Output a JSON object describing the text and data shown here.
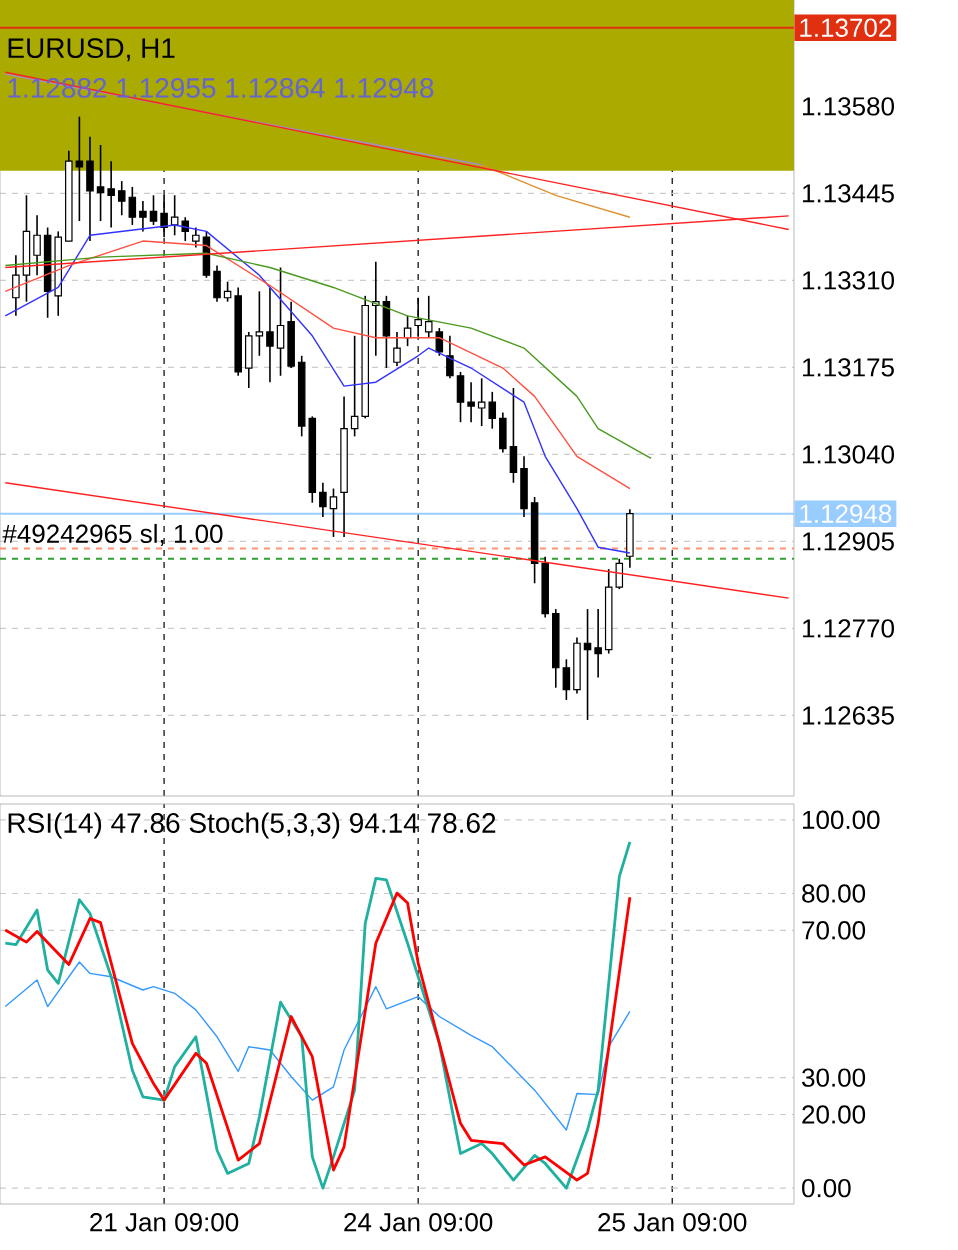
{
  "chart_data": [
    {
      "type": "candlestick",
      "title": "EURUSD, H1",
      "subtitle": "1.12882 1.12955 1.12864 1.12948",
      "categories": [
        null,
        null,
        null,
        null,
        null,
        null,
        null,
        null,
        null,
        null,
        null,
        null,
        null,
        null,
        null,
        null,
        null,
        null,
        null,
        null,
        null,
        null,
        null,
        null,
        null,
        null,
        null,
        null,
        null,
        null,
        null,
        null,
        null,
        null,
        null,
        null,
        null,
        null,
        null,
        null,
        null,
        null,
        null,
        null,
        null,
        null,
        null,
        null,
        null,
        null,
        null,
        null,
        null,
        null,
        null,
        null,
        null,
        null,
        null,
        null,
        null,
        null,
        null,
        null,
        null,
        null,
        null,
        null,
        null,
        null,
        null,
        null,
        null,
        null,
        null
      ],
      "ohlc": [
        null,
        [
          1.13283,
          1.13349,
          1.13255,
          1.13318
        ],
        [
          1.13318,
          1.13442,
          1.13277,
          1.13386
        ],
        [
          1.13349,
          1.13411,
          1.13318,
          1.1338
        ],
        [
          1.1338,
          1.13392,
          1.13252,
          1.13293
        ],
        [
          1.13286,
          1.13386,
          1.13255,
          1.13377
        ],
        [
          1.13371,
          1.13511,
          1.13371,
          1.13495
        ],
        [
          1.13495,
          1.13564,
          1.13402,
          1.13486
        ],
        [
          1.13495,
          1.13533,
          1.13371,
          1.13449
        ],
        [
          1.13455,
          1.1352,
          1.13402,
          1.13446
        ],
        [
          1.13452,
          1.13495,
          1.13392,
          1.13442
        ],
        [
          1.13449,
          1.13464,
          1.13411,
          1.13433
        ],
        [
          1.13439,
          1.13455,
          1.13396,
          1.13408
        ],
        [
          1.13417,
          1.13433,
          1.13386,
          1.13408
        ],
        [
          1.13417,
          1.13442,
          1.13396,
          1.13402
        ],
        [
          1.13414,
          1.13442,
          1.13377,
          1.13392
        ],
        [
          1.13396,
          1.13442,
          1.1338,
          1.13408
        ],
        [
          1.13402,
          1.13408,
          1.13371,
          1.13386
        ],
        [
          1.13371,
          1.13392,
          1.13361,
          1.1338
        ],
        [
          1.13377,
          1.13386,
          1.13314,
          1.13318
        ],
        [
          1.13324,
          1.13333,
          1.13277,
          1.13283
        ],
        [
          1.13283,
          1.13308,
          1.13277,
          1.13293
        ],
        [
          1.13286,
          1.13299,
          1.13162,
          1.13168
        ],
        [
          1.13174,
          1.1323,
          1.13143,
          1.13224
        ],
        [
          1.13224,
          1.13293,
          1.13193,
          1.1323
        ],
        [
          1.1323,
          1.13299,
          1.13152,
          1.13208
        ],
        [
          1.13205,
          1.1333,
          1.13162,
          1.1324
        ],
        [
          1.13246,
          1.13277,
          1.13174,
          1.13177
        ],
        [
          1.13183,
          1.13193,
          1.13068,
          1.13084
        ],
        [
          1.13096,
          1.13099,
          1.12965,
          1.12981
        ],
        [
          1.12981,
          1.12996,
          1.12943,
          1.12959
        ],
        [
          1.12956,
          1.12987,
          1.12912,
          1.12974
        ],
        [
          1.12981,
          1.1313,
          1.12912,
          1.1308
        ],
        [
          1.1308,
          1.13224,
          1.13068,
          1.13099
        ],
        [
          1.13099,
          1.13286,
          1.13096,
          1.13271
        ],
        [
          1.13271,
          1.13339,
          1.13193,
          1.13277
        ],
        [
          1.13277,
          1.13286,
          1.13174,
          1.13224
        ],
        [
          1.13183,
          1.1323,
          1.13177,
          1.13205
        ],
        [
          1.13221,
          1.13255,
          1.13208,
          1.13236
        ],
        [
          1.1324,
          1.13283,
          1.13224,
          1.13249
        ],
        [
          1.1323,
          1.13286,
          1.13221,
          1.13246
        ],
        [
          1.1323,
          1.13236,
          1.13193,
          1.13199
        ],
        [
          1.13193,
          1.13224,
          1.13158,
          1.13162
        ],
        [
          1.13162,
          1.13168,
          1.1309,
          1.13121
        ],
        [
          1.13121,
          1.13152,
          1.1309,
          1.13115
        ],
        [
          1.13112,
          1.13158,
          1.13084,
          1.13121
        ],
        [
          1.13121,
          1.13137,
          1.1308,
          1.13096
        ],
        [
          1.13096,
          1.13105,
          1.13043,
          1.13049
        ],
        [
          1.13052,
          1.13143,
          1.12996,
          1.13012
        ],
        [
          1.13018,
          1.13037,
          1.12943,
          1.12956
        ],
        [
          1.12965,
          1.12974,
          1.1284,
          1.12871
        ],
        [
          1.12871,
          1.12881,
          1.12787,
          1.12793
        ],
        [
          1.12793,
          1.128,
          1.12678,
          1.12709
        ],
        [
          1.12709,
          1.12722,
          1.12659,
          1.12675
        ],
        [
          1.12675,
          1.12756,
          1.12669,
          1.12747
        ],
        [
          1.12747,
          1.128,
          1.12628,
          1.12737
        ],
        [
          1.1274,
          1.128,
          1.12694,
          1.12731
        ],
        [
          1.12737,
          1.12862,
          1.12731,
          1.12834
        ],
        [
          1.12834,
          1.12878,
          1.12831,
          1.12871
        ],
        [
          1.12882,
          1.12955,
          1.12864,
          1.12948
        ],
        null,
        null,
        null,
        null,
        null,
        null,
        null,
        null,
        null,
        null,
        null,
        null,
        null,
        null,
        null
      ],
      "series": [
        {
          "type": "line",
          "color": "#3333ff",
          "values": [
            1.13255,
            null,
            null,
            null,
            null,
            1.13299,
            null,
            null,
            1.1338,
            null,
            null,
            null,
            null,
            null,
            null,
            null,
            1.13396,
            null,
            null,
            1.13386,
            null,
            null,
            null,
            null,
            1.13318,
            null,
            null,
            null,
            null,
            1.13224,
            null,
            null,
            1.13146,
            null,
            null,
            1.13152,
            null,
            null,
            null,
            1.13193,
            1.13205,
            null,
            null,
            null,
            1.13174,
            null,
            null,
            null,
            null,
            1.13121,
            null,
            1.13037,
            null,
            null,
            1.12956,
            null,
            1.12896,
            null,
            null,
            1.12887,
            null,
            null,
            null,
            null,
            null,
            null,
            null,
            null,
            null,
            null,
            null,
            null,
            null,
            null,
            null
          ]
        },
        {
          "type": "line",
          "color": "#ff5040",
          "values": [
            1.13293,
            null,
            null,
            null,
            null,
            null,
            1.13333,
            null,
            null,
            null,
            null,
            null,
            null,
            1.13371,
            null,
            null,
            null,
            null,
            null,
            1.13364,
            null,
            null,
            null,
            null,
            null,
            1.13302,
            null,
            null,
            null,
            null,
            null,
            1.13236,
            null,
            null,
            null,
            1.13221,
            null,
            null,
            null,
            null,
            null,
            1.13221,
            null,
            null,
            null,
            null,
            null,
            1.13174,
            null,
            null,
            1.1313,
            null,
            null,
            null,
            1.13037,
            null,
            null,
            null,
            null,
            1.12987,
            null,
            null,
            null,
            null,
            null,
            null,
            null,
            null,
            null,
            null,
            null,
            null,
            null,
            null,
            null
          ]
        },
        {
          "type": "line",
          "color": "#4a9a20",
          "values": [
            1.13333,
            null,
            null,
            null,
            null,
            null,
            null,
            null,
            null,
            1.13346,
            null,
            null,
            null,
            null,
            null,
            null,
            null,
            null,
            null,
            1.13352,
            null,
            null,
            null,
            null,
            null,
            1.1333,
            null,
            null,
            null,
            null,
            null,
            1.13299,
            null,
            null,
            null,
            null,
            null,
            null,
            1.13255,
            null,
            null,
            null,
            null,
            null,
            1.13236,
            null,
            null,
            null,
            null,
            1.13205,
            null,
            null,
            null,
            null,
            1.1313,
            null,
            1.1308,
            null,
            null,
            null,
            null,
            1.13034,
            null,
            null,
            null,
            null,
            null,
            null,
            null,
            null,
            null,
            null,
            null,
            null,
            null
          ]
        },
        {
          "type": "line",
          "color": "#a090d0",
          "values": [
            1.1363,
            null,
            null,
            null,
            null,
            null,
            null,
            null,
            null,
            null,
            null,
            null,
            null,
            null,
            null,
            1.13583,
            null,
            null,
            null,
            null,
            null,
            null,
            null,
            null,
            null,
            null,
            null,
            null,
            null,
            null,
            1.13536,
            null,
            null,
            null,
            null,
            null,
            null,
            null,
            null,
            null,
            null,
            null,
            null,
            null,
            null,
            1.13489,
            null,
            null,
            null,
            null,
            null,
            null,
            null,
            null,
            null,
            null,
            null,
            null,
            null,
            null,
            null,
            null,
            null,
            null,
            null,
            null,
            null,
            null,
            null,
            null,
            null,
            null,
            null,
            null,
            null
          ]
        },
        {
          "type": "line",
          "color": "#e09030",
          "values": [
            null,
            null,
            null,
            null,
            null,
            null,
            null,
            null,
            null,
            null,
            null,
            null,
            null,
            null,
            null,
            null,
            null,
            null,
            null,
            null,
            null,
            null,
            null,
            null,
            null,
            null,
            null,
            null,
            null,
            null,
            null,
            null,
            null,
            null,
            null,
            null,
            null,
            null,
            null,
            null,
            null,
            null,
            null,
            null,
            null,
            1.13489,
            null,
            null,
            null,
            null,
            null,
            null,
            1.13442,
            null,
            null,
            null,
            null,
            null,
            null,
            1.13408,
            null,
            null,
            null,
            null,
            null,
            null,
            null,
            null,
            null,
            null,
            null,
            null,
            null,
            null,
            null
          ]
        },
        {
          "type": "line",
          "color": "#ff2020",
          "values": [
            1.13633,
            null,
            null,
            null,
            null,
            null,
            null,
            null,
            null,
            null,
            null,
            null,
            null,
            null,
            null,
            null,
            null,
            null,
            null,
            null,
            null,
            null,
            null,
            null,
            null,
            null,
            null,
            null,
            null,
            null,
            null,
            null,
            null,
            null,
            null,
            null,
            null,
            null,
            null,
            null,
            null,
            null,
            null,
            null,
            null,
            null,
            null,
            null,
            null,
            null,
            null,
            null,
            null,
            null,
            null,
            null,
            null,
            null,
            null,
            null,
            null,
            null,
            null,
            null,
            null,
            null,
            null,
            null,
            null,
            null,
            null,
            null,
            null,
            null,
            1.13389
          ]
        },
        {
          "type": "line",
          "color": "#ff2020",
          "values": [
            1.1333,
            null,
            null,
            null,
            null,
            null,
            null,
            null,
            null,
            null,
            null,
            null,
            null,
            null,
            null,
            null,
            null,
            null,
            null,
            null,
            null,
            null,
            null,
            null,
            null,
            null,
            null,
            null,
            null,
            null,
            null,
            null,
            null,
            null,
            null,
            null,
            null,
            null,
            null,
            null,
            null,
            null,
            null,
            null,
            null,
            null,
            null,
            null,
            null,
            null,
            null,
            null,
            null,
            null,
            null,
            null,
            null,
            null,
            null,
            null,
            null,
            null,
            null,
            null,
            null,
            null,
            null,
            null,
            null,
            null,
            null,
            null,
            null,
            null,
            1.1341
          ]
        },
        {
          "type": "line",
          "color": "#ff2020",
          "values": [
            1.12996,
            null,
            null,
            null,
            null,
            null,
            null,
            null,
            null,
            null,
            null,
            null,
            null,
            null,
            null,
            null,
            null,
            null,
            null,
            null,
            null,
            null,
            null,
            null,
            null,
            null,
            null,
            null,
            null,
            null,
            null,
            null,
            null,
            null,
            null,
            null,
            null,
            null,
            null,
            null,
            null,
            null,
            null,
            null,
            null,
            null,
            null,
            null,
            null,
            null,
            null,
            null,
            null,
            null,
            null,
            null,
            null,
            null,
            null,
            null,
            null,
            null,
            null,
            null,
            null,
            null,
            null,
            null,
            null,
            null,
            null,
            null,
            null,
            null,
            1.12817
          ]
        }
      ],
      "bands": [
        {
          "axis": "y",
          "from": 1.1348,
          "to": 1.13745,
          "color": "#aaaa00"
        }
      ],
      "ref_lines": [
        {
          "axis": "y",
          "value": 1.13702,
          "label": "1.13702",
          "color": "#e03010"
        },
        {
          "axis": "y",
          "value": 1.12948,
          "label": "1.12948",
          "color": "#99ccff"
        },
        {
          "axis": "y",
          "value": 1.12894,
          "color": "#ff9070",
          "line_style": "dashed"
        },
        {
          "axis": "y",
          "value": 1.12878,
          "color": "#30a030",
          "line_style": "dashed"
        }
      ],
      "annotations": [
        {
          "text": "#49242965 sl, 1.00",
          "y": 1.12894
        }
      ],
      "ylim": [
        1.1251,
        1.13745
      ],
      "yticks": [
        {
          "value": 1.1358,
          "label": "1.13580"
        },
        1.13445,
        {
          "value": 1.1331,
          "label": "1.13310"
        },
        1.13175,
        {
          "value": 1.1304,
          "label": "1.13040"
        },
        1.12905,
        {
          "value": 1.1277,
          "label": "1.12770"
        },
        1.12635
      ],
      "grid": true,
      "tick_labels": "y"
    },
    {
      "type": "line",
      "title": "RSI(14) 47.86 Stoch(5,3,3) 94.14 78.62",
      "categories": [
        null,
        null,
        null,
        null,
        null,
        null,
        null,
        null,
        null,
        null,
        null,
        null,
        null,
        null,
        null,
        "21 Jan 09:00",
        null,
        null,
        null,
        null,
        null,
        null,
        null,
        null,
        null,
        null,
        null,
        null,
        null,
        null,
        null,
        null,
        null,
        null,
        null,
        null,
        null,
        null,
        null,
        "24 Jan 09:00",
        null,
        null,
        null,
        null,
        null,
        null,
        null,
        null,
        null,
        null,
        null,
        null,
        null,
        null,
        null,
        null,
        null,
        null,
        null,
        null,
        null,
        null,
        null,
        "25 Jan 09:00",
        null,
        null,
        null,
        null,
        null,
        null,
        null,
        null,
        null,
        null,
        null
      ],
      "series": [
        {
          "color": "#3399ff",
          "values": [
            49.3,
            null,
            null,
            56.5,
            49.3,
            null,
            null,
            61.4,
            58.3,
            null,
            57.4,
            null,
            null,
            53.8,
            54.7,
            null,
            52.9,
            null,
            48.4,
            null,
            41.1,
            null,
            31.7,
            38.4,
            null,
            37.5,
            null,
            30.3,
            null,
            23.9,
            null,
            27.5,
            37.5,
            null,
            null,
            54.7,
            48.7,
            null,
            null,
            52.0,
            null,
            46.6,
            null,
            null,
            41.5,
            null,
            38.4,
            null,
            null,
            null,
            26.6,
            null,
            null,
            15.8,
            25.7,
            null,
            25.4,
            38.4,
            null,
            48,
            null,
            null,
            null,
            null,
            null,
            null,
            null,
            null,
            null,
            null,
            null,
            null,
            null,
            null,
            null
          ]
        },
        {
          "color": "#20b0a0",
          "values": [
            66.5,
            66.1,
            null,
            75.5,
            59.2,
            55.6,
            null,
            78.3,
            74.6,
            null,
            57.4,
            null,
            32.0,
            24.8,
            null,
            23.9,
            33.0,
            null,
            41.1,
            null,
            10.3,
            4.0,
            null,
            6.7,
            19.4,
            null,
            50.5,
            null,
            41.1,
            8.5,
            0,
            8.5,
            null,
            26.6,
            71.9,
            84.1,
            83.7,
            null,
            66.5,
            null,
            null,
            39.3,
            null,
            9.4,
            null,
            12.1,
            9.4,
            null,
            2.2,
            null,
            8.9,
            6.7,
            null,
            0,
            null,
            15.8,
            26.6,
            null,
            84.6,
            94,
            null,
            null,
            null,
            null,
            null,
            null,
            null,
            null,
            null,
            null,
            null,
            null,
            null,
            null,
            null
          ]
        },
        {
          "color": "#ff0000",
          "values": [
            70.1,
            null,
            66.8,
            69.7,
            null,
            null,
            60.7,
            null,
            73.2,
            72.1,
            null,
            null,
            39.3,
            null,
            28.4,
            23.9,
            null,
            null,
            36.6,
            33.9,
            null,
            null,
            7.6,
            null,
            12.1,
            null,
            null,
            46.6,
            null,
            35.7,
            null,
            4.9,
            11.2,
            null,
            null,
            66.5,
            null,
            80.1,
            77.4,
            61.1,
            null,
            null,
            null,
            17.6,
            13.0,
            null,
            null,
            12.1,
            null,
            6.3,
            null,
            8.5,
            null,
            null,
            2.2,
            4.0,
            17.6,
            null,
            null,
            79,
            null,
            null,
            null,
            null,
            null,
            null,
            null,
            null,
            null,
            null,
            null,
            null,
            null,
            null,
            null
          ]
        }
      ],
      "ylim": [
        -4.3,
        104.3
      ],
      "yticks": [
        {
          "value": 0,
          "label": "0.00"
        },
        {
          "value": 20,
          "label": "20.00"
        },
        {
          "value": 30,
          "label": "30.00"
        },
        {
          "value": 70,
          "label": "70.00"
        },
        {
          "value": 80,
          "label": "80.00"
        },
        {
          "value": 100,
          "label": "100.00"
        }
      ],
      "grid": true
    }
  ]
}
